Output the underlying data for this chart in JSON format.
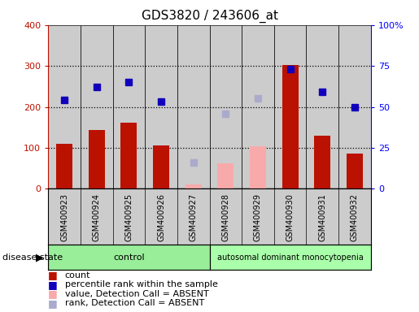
{
  "title": "GDS3820 / 243606_at",
  "samples": [
    "GSM400923",
    "GSM400924",
    "GSM400925",
    "GSM400926",
    "GSM400927",
    "GSM400928",
    "GSM400929",
    "GSM400930",
    "GSM400931",
    "GSM400932"
  ],
  "count_present": [
    110,
    143,
    162,
    105,
    null,
    null,
    null,
    302,
    130,
    85
  ],
  "count_absent": [
    null,
    null,
    null,
    null,
    10,
    62,
    103,
    null,
    null,
    null
  ],
  "rank_present": [
    54,
    62,
    65,
    53,
    null,
    null,
    null,
    73,
    59,
    50
  ],
  "rank_absent": [
    null,
    null,
    null,
    null,
    16,
    46,
    55,
    null,
    null,
    null
  ],
  "ylim_left": [
    0,
    400
  ],
  "ylim_right": [
    0,
    100
  ],
  "yticks_left": [
    0,
    100,
    200,
    300,
    400
  ],
  "ytick_labels_left": [
    "0",
    "100",
    "200",
    "300",
    "400"
  ],
  "ytick_labels_right": [
    "0",
    "25",
    "50",
    "75",
    "100%"
  ],
  "bar_width": 0.5,
  "red_color": "#bb1100",
  "pink_color": "#f8aaaa",
  "blue_color": "#1100bb",
  "lightblue_color": "#aaaacc",
  "bg_color": "#cccccc",
  "ctrl_color": "#99ee99",
  "disease_color": "#aaffaa",
  "legend_items": [
    {
      "label": "count",
      "color": "#bb1100"
    },
    {
      "label": "percentile rank within the sample",
      "color": "#1100bb"
    },
    {
      "label": "value, Detection Call = ABSENT",
      "color": "#f8aaaa"
    },
    {
      "label": "rank, Detection Call = ABSENT",
      "color": "#aaaacc"
    }
  ]
}
